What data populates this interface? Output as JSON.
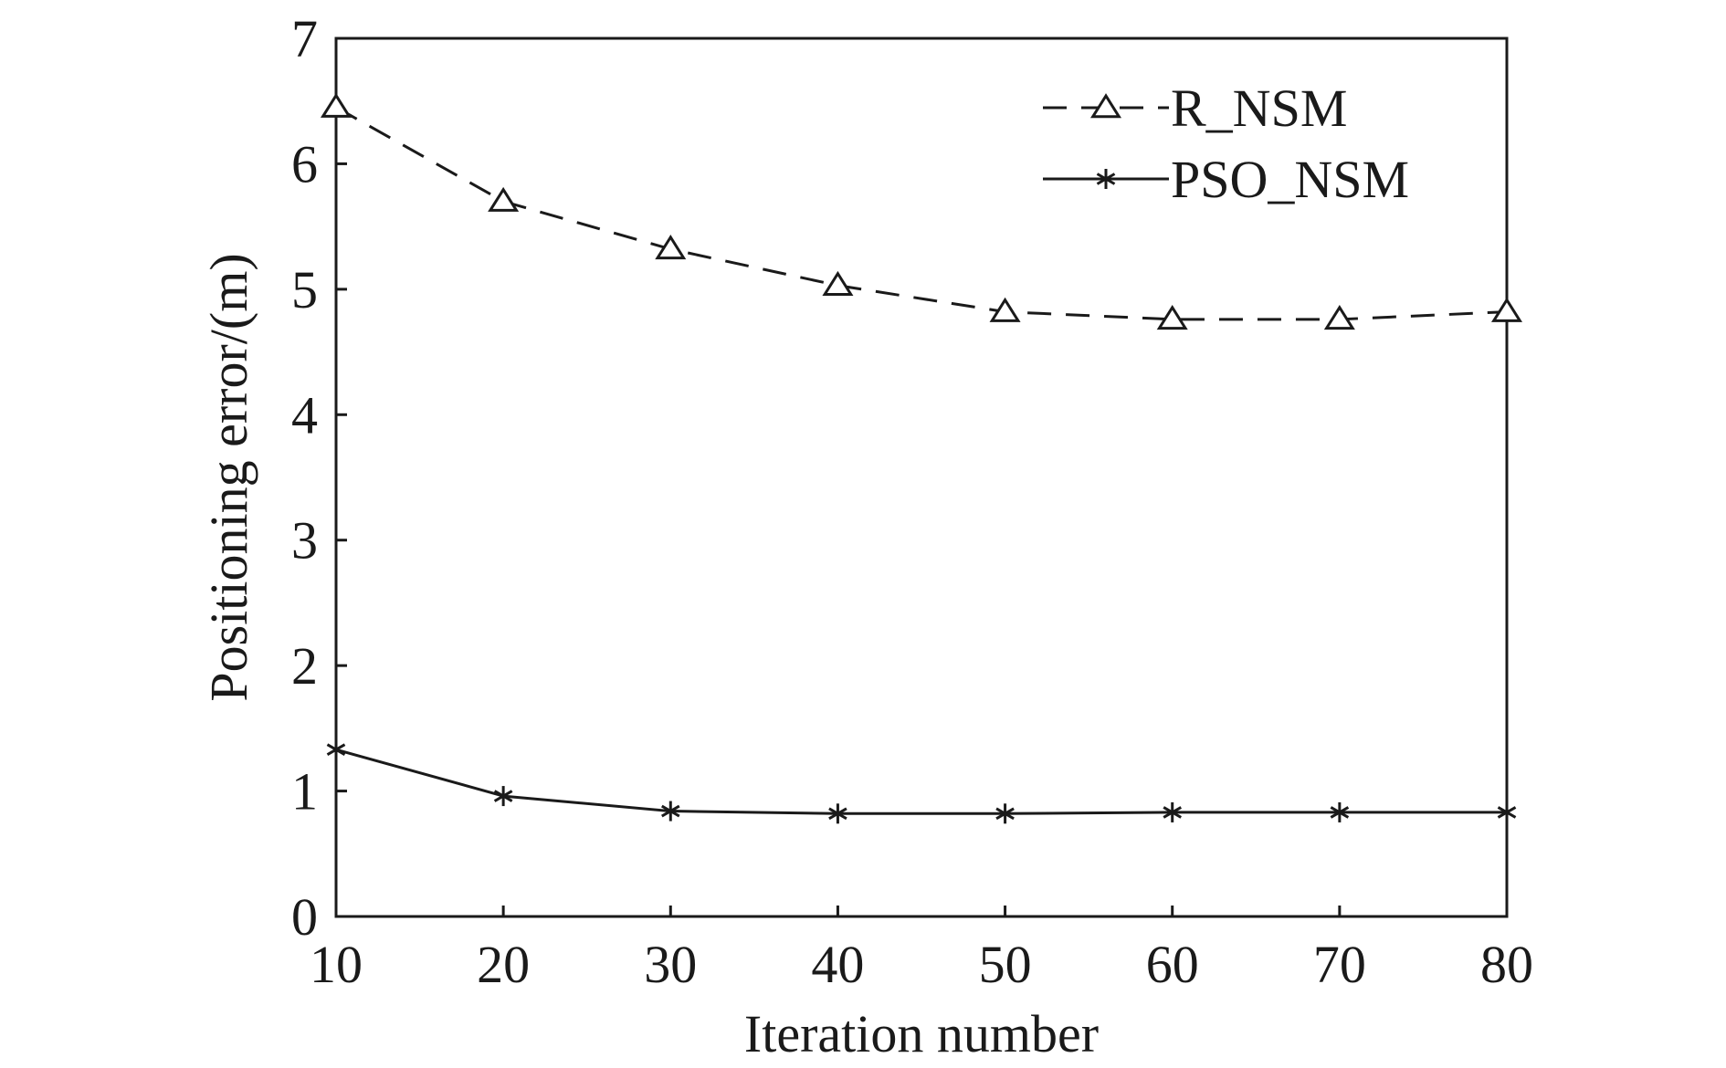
{
  "chart_data": {
    "type": "line",
    "title": "",
    "xlabel": "Iteration number",
    "ylabel": "Positioning error/(m)",
    "xlim": [
      10,
      80
    ],
    "ylim": [
      0,
      7
    ],
    "x_ticks": [
      10,
      20,
      30,
      40,
      50,
      60,
      70,
      80
    ],
    "y_ticks": [
      0,
      1,
      2,
      3,
      4,
      5,
      6,
      7
    ],
    "grid": false,
    "legend_position": "top-right",
    "x": [
      10,
      20,
      30,
      40,
      50,
      60,
      70,
      80
    ],
    "series": [
      {
        "name": "R_NSM",
        "values": [
          6.45,
          5.7,
          5.32,
          5.03,
          4.82,
          4.76,
          4.76,
          4.82
        ],
        "line_style": "dashed",
        "marker": "triangle",
        "color": "#1a1a1a"
      },
      {
        "name": "PSO_NSM",
        "values": [
          1.33,
          0.96,
          0.84,
          0.82,
          0.82,
          0.83,
          0.83,
          0.83
        ],
        "line_style": "solid",
        "marker": "asterisk",
        "color": "#1a1a1a"
      }
    ]
  }
}
